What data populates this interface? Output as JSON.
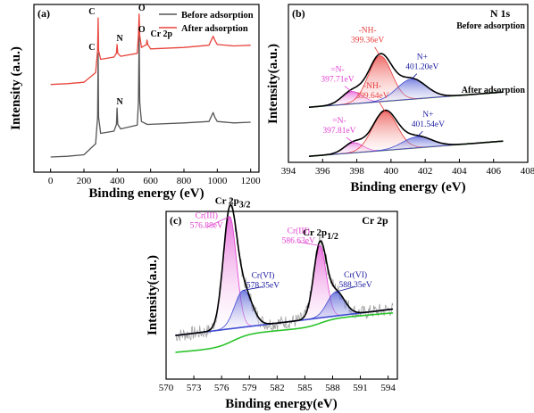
{
  "chart_data": [
    {
      "panel": "(a)",
      "type": "line",
      "xlabel": "Binding energy (eV)",
      "ylabel": "Intensity (a.u.)",
      "xlim": [
        -100,
        1250
      ],
      "ylim": [
        0,
        10
      ],
      "xticks": [
        "0",
        "200",
        "400",
        "600",
        "800",
        "1000",
        "1200"
      ],
      "legend_position": "top-right",
      "series": [
        {
          "name": "Before adsorption",
          "color": "#555555",
          "x": [
            0,
            100,
            200,
            270,
            282,
            285,
            288,
            300,
            380,
            395,
            399,
            403,
            420,
            520,
            527,
            531,
            535,
            545,
            580,
            800,
            950,
            975,
            985,
            1000,
            1100,
            1200
          ],
          "y": [
            0.3,
            0.35,
            0.45,
            1.2,
            3.0,
            7.3,
            3.0,
            1.9,
            2.05,
            2.5,
            3.6,
            2.5,
            2.2,
            2.45,
            4.0,
            8.5,
            4.0,
            2.7,
            2.5,
            2.6,
            2.7,
            3.3,
            3.0,
            2.7,
            2.6,
            2.65
          ]
        },
        {
          "name": "After adsorption",
          "color": "#e8433b",
          "x": [
            0,
            100,
            200,
            270,
            282,
            285,
            288,
            300,
            380,
            395,
            399,
            403,
            420,
            520,
            527,
            531,
            535,
            545,
            575,
            578,
            583,
            600,
            800,
            950,
            975,
            985,
            1000,
            1100,
            1200
          ],
          "y": [
            5.2,
            5.25,
            5.35,
            6.0,
            7.5,
            9.7,
            7.5,
            6.9,
            7.05,
            7.3,
            7.9,
            7.3,
            7.1,
            7.3,
            8.5,
            9.95,
            8.5,
            7.7,
            7.9,
            8.2,
            7.9,
            7.6,
            7.7,
            7.85,
            8.45,
            8.2,
            7.9,
            7.8,
            7.85
          ]
        }
      ],
      "annotations": [
        {
          "text": "C",
          "x": 285,
          "y": 9.7
        },
        {
          "text": "N",
          "x": 399,
          "y": 7.9
        },
        {
          "text": "O",
          "x": 531,
          "y": 9.95
        },
        {
          "text": "Cr 2p",
          "x": 578,
          "y": 8.2
        },
        {
          "text": "C",
          "x": 285,
          "y": 7.3
        },
        {
          "text": "N",
          "x": 399,
          "y": 3.6
        },
        {
          "text": "O",
          "x": 531,
          "y": 8.5
        }
      ]
    },
    {
      "panel": "(b)",
      "type": "line",
      "title": "N 1s",
      "xlabel": "Binding energy (eV)",
      "ylabel": "Intensity(a.u.)",
      "xlim": [
        394,
        408
      ],
      "xticks": [
        "394",
        "396",
        "398",
        "400",
        "402",
        "404",
        "406",
        "408"
      ],
      "subplots": [
        {
          "label": "Before adsorption",
          "baseline": 4.6,
          "envelope_color": "#000000",
          "peaks": [
            {
              "label": "=N-",
              "value_label": "397.71eV",
              "center": 397.71,
              "height": 1.1,
              "fwhm": 1.4,
              "color": "#e040d0",
              "label_color": "#e040d0"
            },
            {
              "label": "-NH-",
              "value_label": "399.36eV",
              "center": 399.36,
              "height": 4.1,
              "fwhm": 1.6,
              "color": "#e83a3a",
              "label_color": "#e83a3a"
            },
            {
              "label": "N+",
              "value_label": "401.20eV",
              "center": 401.2,
              "height": 1.8,
              "fwhm": 2.0,
              "color": "#3f4bd0",
              "label_color": "#1a1aa0"
            }
          ]
        },
        {
          "label": "After adsorption",
          "baseline": 0.2,
          "envelope_color": "#000000",
          "peaks": [
            {
              "label": "=N-",
              "value_label": "397.81eV",
              "center": 397.81,
              "height": 0.9,
              "fwhm": 1.3,
              "color": "#e040d0",
              "label_color": "#e040d0"
            },
            {
              "label": "-NH-",
              "value_label": "399.64eV",
              "center": 399.64,
              "height": 3.5,
              "fwhm": 1.7,
              "color": "#e83a3a",
              "label_color": "#e83a3a"
            },
            {
              "label": "N+",
              "value_label": "401.54eV",
              "center": 401.54,
              "height": 1.0,
              "fwhm": 2.0,
              "color": "#3f4bd0",
              "label_color": "#1a1aa0"
            }
          ]
        }
      ]
    },
    {
      "panel": "(c)",
      "type": "line",
      "title": "Cr 2p",
      "xlabel": "Binding energy(eV)",
      "ylabel": "Intensity(a.u.)",
      "xlim": [
        570,
        595
      ],
      "xticks": [
        "570",
        "573",
        "576",
        "579",
        "582",
        "585",
        "588",
        "591",
        "594"
      ],
      "peak_groups": [
        {
          "label": "Cr 2p3/2",
          "x": 577.2
        },
        {
          "label": "Cr 2p1/2",
          "x": 586.7
        }
      ],
      "background": {
        "name": "Shirley background",
        "color": "#2bc42b"
      },
      "secondary_background": {
        "color": "#3f4bd0"
      },
      "raw": {
        "color": "#999999"
      },
      "peaks": [
        {
          "label": "Cr(III)",
          "value_label": "576.88eV",
          "center": 576.88,
          "height": 7.0,
          "fwhm": 1.7,
          "color": "#e040d0",
          "label_color": "#e040d0"
        },
        {
          "label": "Cr(VI)",
          "value_label": "578.35eV",
          "center": 578.35,
          "height": 2.3,
          "fwhm": 2.2,
          "color": "#3f4bd0",
          "label_color": "#1a1aa0"
        },
        {
          "label": "Cr(III)",
          "value_label": "586.63eV",
          "center": 586.63,
          "height": 4.5,
          "fwhm": 1.6,
          "color": "#e040d0",
          "label_color": "#e040d0"
        },
        {
          "label": "Cr(VI)",
          "value_label": "588.35eV",
          "center": 588.35,
          "height": 1.5,
          "fwhm": 2.2,
          "color": "#3f4bd0",
          "label_color": "#1a1aa0"
        }
      ]
    }
  ]
}
